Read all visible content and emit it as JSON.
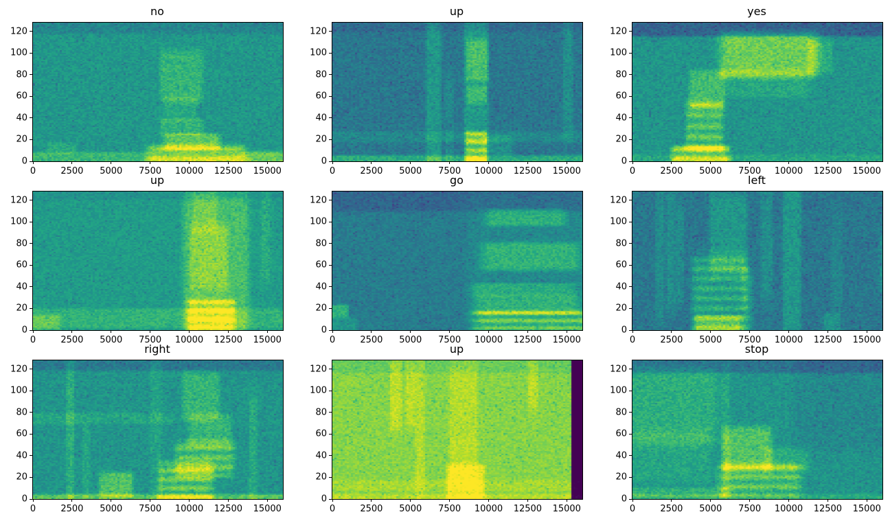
{
  "figure": {
    "kind": "matplotlib-figure",
    "background": "#ffffff",
    "rows": 3,
    "cols": 3
  },
  "chart_data": {
    "type": "heatmap",
    "subtype": "audio-spectrogram-grid",
    "colormap": "viridis",
    "grid": "3x3",
    "x_range": [
      0,
      16000
    ],
    "y_range": [
      0,
      128
    ],
    "x_ticks": [
      0,
      2500,
      5000,
      7500,
      10000,
      12500,
      15000
    ],
    "y_ticks": [
      0,
      20,
      40,
      60,
      80,
      100,
      120
    ],
    "axes_color": "#000000",
    "subplots": [
      {
        "title": "no",
        "seed": 11,
        "base": 0.53,
        "noise": 0.07,
        "regions": [
          {
            "x": [
              0,
              16000
            ],
            "y": [
              0,
              7
            ],
            "amp": 0.14
          },
          {
            "x": [
              1000,
              2600
            ],
            "y": [
              8,
              16
            ],
            "amp": 0.07
          },
          {
            "x": [
              7800,
              13000
            ],
            "y": [
              0,
              14
            ],
            "amp": 0.3,
            "bands": 9
          },
          {
            "x": [
              8600,
              11600
            ],
            "y": [
              12,
              24
            ],
            "amp": 0.22
          },
          {
            "x": [
              8300,
              10600
            ],
            "y": [
              26,
              38
            ],
            "amp": 0.12
          },
          {
            "x": [
              8500,
              10300
            ],
            "y": [
              40,
              58
            ],
            "amp": 0.07
          },
          {
            "x": [
              8300,
              10600
            ],
            "y": [
              60,
              97
            ],
            "amp": 0.13
          },
          {
            "x": [
              13500,
              16000
            ],
            "y": [
              0,
              8
            ],
            "amp": 0.1
          },
          {
            "x": [
              0,
              16000
            ],
            "y": [
              119,
              128
            ],
            "amp": -0.07
          }
        ]
      },
      {
        "title": "up",
        "seed": 22,
        "base": 0.4,
        "noise": 0.07,
        "regions": [
          {
            "x": [
              0,
              16000
            ],
            "y": [
              0,
              4
            ],
            "amp": 0.22
          },
          {
            "x": [
              0,
              16000
            ],
            "y": [
              19,
              26
            ],
            "amp": 0.07
          },
          {
            "x": [
              6100,
              6800
            ],
            "y": [
              0,
              118
            ],
            "amp": 0.13
          },
          {
            "x": [
              7300,
              7600
            ],
            "y": [
              0,
              70
            ],
            "amp": 0.07
          },
          {
            "x": [
              8500,
              9800
            ],
            "y": [
              0,
              118
            ],
            "amp": 0.14
          },
          {
            "x": [
              8600,
              9700
            ],
            "y": [
              2,
              24
            ],
            "amp": 0.34,
            "bands": 8
          },
          {
            "x": [
              8700,
              9700
            ],
            "y": [
              55,
              68
            ],
            "amp": 0.14
          },
          {
            "x": [
              8650,
              9800
            ],
            "y": [
              78,
              108
            ],
            "amp": 0.17
          },
          {
            "x": [
              9800,
              11300
            ],
            "y": [
              8,
              22
            ],
            "amp": 0.1
          },
          {
            "x": [
              14800,
              15200
            ],
            "y": [
              35,
              128
            ],
            "amp": 0.09
          },
          {
            "x": [
              0,
              16000
            ],
            "y": [
              121,
              128
            ],
            "amp": -0.05
          }
        ]
      },
      {
        "title": "yes",
        "seed": 33,
        "base": 0.52,
        "noise": 0.07,
        "regions": [
          {
            "x": [
              0,
              16000
            ],
            "y": [
              117,
              128
            ],
            "amp": -0.2
          },
          {
            "x": [
              2800,
              5900
            ],
            "y": [
              0,
              13
            ],
            "amp": 0.36,
            "bands": 9
          },
          {
            "x": [
              3600,
              5600
            ],
            "y": [
              14,
              50
            ],
            "amp": 0.25,
            "bands": 10
          },
          {
            "x": [
              3800,
              5700
            ],
            "y": [
              52,
              80
            ],
            "amp": 0.17
          },
          {
            "x": [
              6100,
              11300
            ],
            "y": [
              82,
              114
            ],
            "amp": 0.26
          },
          {
            "x": [
              6300,
              10800
            ],
            "y": [
              62,
              82
            ],
            "amp": 0.08
          },
          {
            "x": [
              11300,
              12600
            ],
            "y": [
              85,
              108
            ],
            "amp": 0.1
          },
          {
            "x": [
              0,
              16000
            ],
            "y": [
              0,
              5
            ],
            "amp": 0.08
          }
        ]
      },
      {
        "title": "up",
        "seed": 44,
        "base": 0.55,
        "noise": 0.06,
        "regions": [
          {
            "x": [
              0,
              16000
            ],
            "y": [
              4,
              18
            ],
            "amp": 0.1
          },
          {
            "x": [
              0,
              1600
            ],
            "y": [
              0,
              12
            ],
            "amp": 0.12
          },
          {
            "x": [
              9900,
              13400
            ],
            "y": [
              0,
              112
            ],
            "amp": 0.16
          },
          {
            "x": [
              10100,
              12600
            ],
            "y": [
              2,
              26
            ],
            "amp": 0.3,
            "bands": 8
          },
          {
            "x": [
              10200,
              12200
            ],
            "y": [
              42,
              90
            ],
            "amp": 0.12
          },
          {
            "x": [
              10300,
              11600
            ],
            "y": [
              95,
              125
            ],
            "amp": 0.08
          },
          {
            "x": [
              14600,
              15000
            ],
            "y": [
              55,
              128
            ],
            "amp": 0.07
          },
          {
            "x": [
              0,
              16000
            ],
            "y": [
              122,
              128
            ],
            "amp": -0.04
          }
        ]
      },
      {
        "title": "go",
        "seed": 55,
        "base": 0.42,
        "noise": 0.06,
        "regions": [
          {
            "x": [
              0,
              16000
            ],
            "y": [
              112,
              128
            ],
            "amp": -0.09
          },
          {
            "x": [
              9600,
              16000
            ],
            "y": [
              2,
              16
            ],
            "amp": 0.34,
            "bands": 7
          },
          {
            "x": [
              9600,
              15200
            ],
            "y": [
              17,
              30
            ],
            "amp": 0.18
          },
          {
            "x": [
              9400,
              15000
            ],
            "y": [
              33,
              42
            ],
            "amp": 0.15
          },
          {
            "x": [
              10000,
              15200
            ],
            "y": [
              58,
              78
            ],
            "amp": 0.18
          },
          {
            "x": [
              10200,
              14400
            ],
            "y": [
              98,
              110
            ],
            "amp": 0.17
          },
          {
            "x": [
              9300,
              16000
            ],
            "y": [
              0,
              110
            ],
            "amp": 0.05
          },
          {
            "x": [
              0,
              900
            ],
            "y": [
              13,
              22
            ],
            "amp": 0.22
          },
          {
            "x": [
              0,
              1400
            ],
            "y": [
              0,
              10
            ],
            "amp": 0.1
          }
        ]
      },
      {
        "title": "left",
        "seed": 66,
        "base": 0.4,
        "noise": 0.07,
        "regions": [
          {
            "x": [
              1600,
              1900
            ],
            "y": [
              20,
              120
            ],
            "amp": 0.08
          },
          {
            "x": [
              2300,
              2600
            ],
            "y": [
              30,
              115
            ],
            "amp": 0.09
          },
          {
            "x": [
              2900,
              3150
            ],
            "y": [
              35,
              110
            ],
            "amp": 0.08
          },
          {
            "x": [
              4100,
              7100
            ],
            "y": [
              0,
              60
            ],
            "amp": 0.26,
            "bands": 9
          },
          {
            "x": [
              4200,
              6700
            ],
            "y": [
              0,
              12
            ],
            "amp": 0.22
          },
          {
            "x": [
              5100,
              7100
            ],
            "y": [
              60,
              118
            ],
            "amp": 0.13
          },
          {
            "x": [
              7100,
              7600
            ],
            "y": [
              0,
              50
            ],
            "amp": 0.08
          },
          {
            "x": [
              8300,
              8800
            ],
            "y": [
              40,
              122
            ],
            "amp": 0.09
          },
          {
            "x": [
              9700,
              10600
            ],
            "y": [
              0,
              126
            ],
            "amp": 0.13
          },
          {
            "x": [
              12300,
              13100
            ],
            "y": [
              0,
              14
            ],
            "amp": 0.12
          },
          {
            "x": [
              12800,
              13200
            ],
            "y": [
              30,
              95
            ],
            "amp": 0.06
          },
          {
            "x": [
              15800,
              16000
            ],
            "y": [
              40,
              80
            ],
            "amp": 0.08
          }
        ]
      },
      {
        "title": "right",
        "seed": 77,
        "base": 0.52,
        "noise": 0.07,
        "regions": [
          {
            "x": [
              0,
              16000
            ],
            "y": [
              120,
              128
            ],
            "amp": -0.11
          },
          {
            "x": [
              0,
              16000
            ],
            "y": [
              0,
              3
            ],
            "amp": 0.22
          },
          {
            "x": [
              0,
              8200
            ],
            "y": [
              71,
              78
            ],
            "amp": 0.07
          },
          {
            "x": [
              2250,
              2500
            ],
            "y": [
              0,
              120
            ],
            "amp": 0.11
          },
          {
            "x": [
              3250,
              3500
            ],
            "y": [
              0,
              60
            ],
            "amp": 0.07
          },
          {
            "x": [
              4400,
              6200
            ],
            "y": [
              4,
              22
            ],
            "amp": 0.2
          },
          {
            "x": [
              8300,
              11200
            ],
            "y": [
              0,
              30
            ],
            "amp": 0.28,
            "bands": 8
          },
          {
            "x": [
              9400,
              12500
            ],
            "y": [
              24,
              50
            ],
            "amp": 0.26,
            "bands": 9
          },
          {
            "x": [
              10100,
              12400
            ],
            "y": [
              52,
              75
            ],
            "amp": 0.14
          },
          {
            "x": [
              9700,
              11700
            ],
            "y": [
              78,
              112
            ],
            "amp": 0.14
          },
          {
            "x": [
              13900,
              14150
            ],
            "y": [
              0,
              85
            ],
            "amp": 0.09
          },
          {
            "x": [
              7600,
              8100
            ],
            "y": [
              0,
              126
            ],
            "amp": 0.06
          }
        ]
      },
      {
        "title": "up",
        "seed": 88,
        "base": 0.82,
        "noise": 0.05,
        "regions": [
          {
            "x": [
              3800,
              4300
            ],
            "y": [
              70,
              122
            ],
            "amp": 0.09
          },
          {
            "x": [
              4800,
              5150
            ],
            "y": [
              72,
              120
            ],
            "amp": 0.08
          },
          {
            "x": [
              5400,
              5750
            ],
            "y": [
              20,
              120
            ],
            "amp": 0.07
          },
          {
            "x": [
              7500,
              9500
            ],
            "y": [
              2,
              28
            ],
            "amp": 0.15
          },
          {
            "x": [
              7600,
              9100
            ],
            "y": [
              30,
              115
            ],
            "amp": 0.07
          },
          {
            "x": [
              0,
              16000
            ],
            "y": [
              9,
              16
            ],
            "amp": 0.05
          },
          {
            "x": [
              12600,
              12950
            ],
            "y": [
              85,
              122
            ],
            "amp": 0.08
          },
          {
            "x": [
              0,
              16000
            ],
            "y": [
              0,
              3
            ],
            "amp": 0.08
          },
          {
            "x": [
              0,
              16000
            ],
            "y": [
              118,
              128
            ],
            "amp": -0.05
          },
          {
            "x": [
              15250,
              16000
            ],
            "y": [
              0,
              128
            ],
            "amp": -0.9,
            "mx": 80,
            "my": 4
          }
        ]
      },
      {
        "title": "stop",
        "seed": 99,
        "base": 0.52,
        "noise": 0.07,
        "regions": [
          {
            "x": [
              0,
              16000
            ],
            "y": [
              118,
              128
            ],
            "amp": -0.13
          },
          {
            "x": [
              300,
              5000
            ],
            "y": [
              58,
              112
            ],
            "amp": 0.11
          },
          {
            "x": [
              300,
              4600
            ],
            "y": [
              20,
              58
            ],
            "amp": 0.07
          },
          {
            "x": [
              0,
              5600
            ],
            "y": [
              3,
              9
            ],
            "amp": 0.13
          },
          {
            "x": [
              5900,
              10300
            ],
            "y": [
              6,
              30
            ],
            "amp": 0.26,
            "bands": 9
          },
          {
            "x": [
              6000,
              8600
            ],
            "y": [
              30,
              62
            ],
            "amp": 0.2
          },
          {
            "x": [
              8600,
              11000
            ],
            "y": [
              28,
              45
            ],
            "amp": 0.1
          },
          {
            "x": [
              10800,
              16000
            ],
            "y": [
              55,
              128
            ],
            "amp": -0.05
          },
          {
            "x": [
              5800,
              6100
            ],
            "y": [
              0,
              110
            ],
            "amp": 0.08
          },
          {
            "x": [
              0,
              16000
            ],
            "y": [
              0,
              3
            ],
            "amp": 0.1
          }
        ]
      }
    ]
  }
}
